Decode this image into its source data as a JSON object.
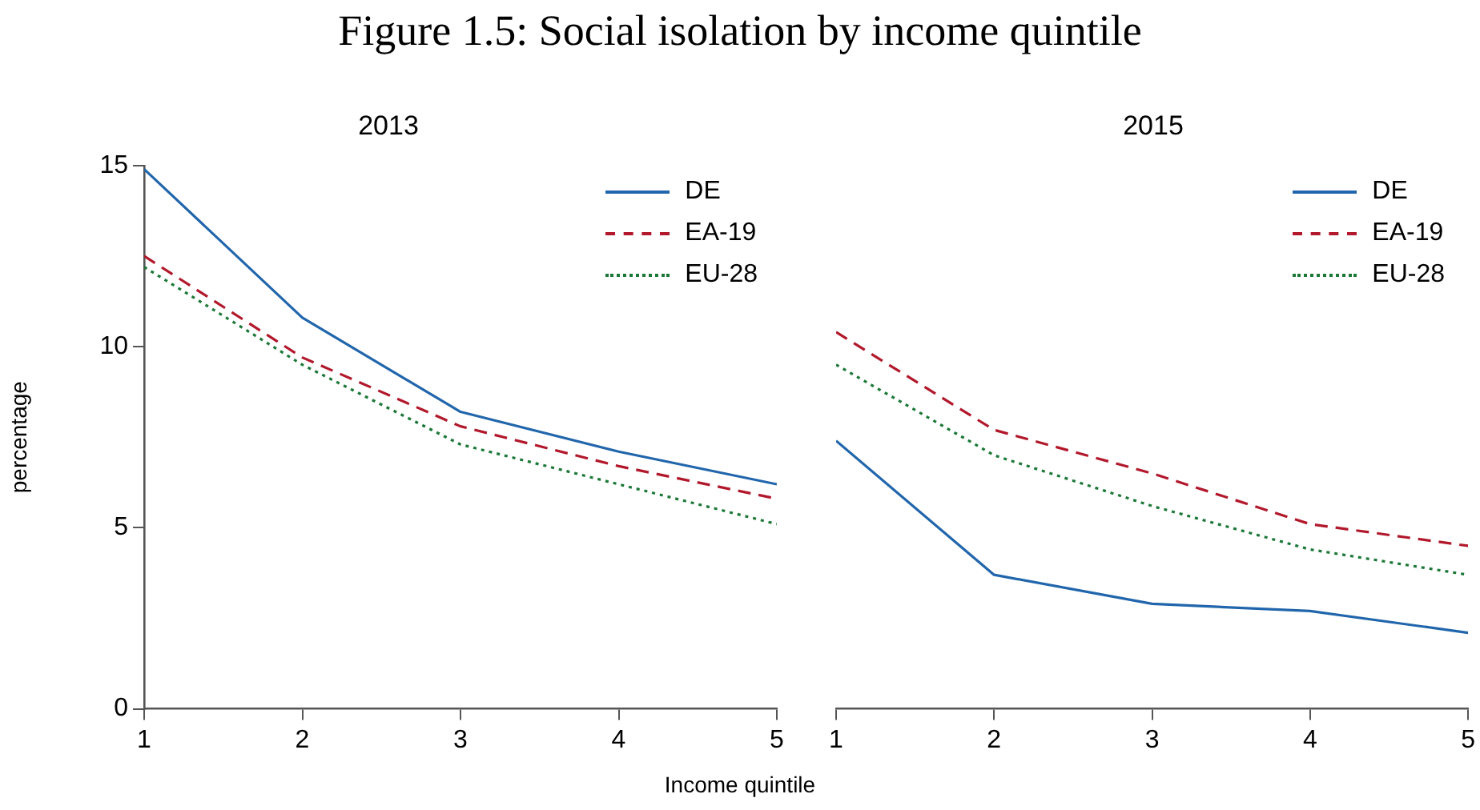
{
  "chart_data": [
    {
      "type": "line",
      "title": "2013",
      "annotations": [
        "Figure 1.5: Social isolation by income quintile"
      ],
      "xlabel": "Income quintile",
      "ylabel": "percentage",
      "x": [
        1,
        2,
        3,
        4,
        5
      ],
      "xlim": [
        1,
        5
      ],
      "xticks": [
        1,
        2,
        3,
        4,
        5
      ],
      "ylim": [
        0,
        15
      ],
      "yticks": [
        0,
        5,
        10,
        15
      ],
      "grid": false,
      "legend": "top right",
      "series": [
        {
          "name": "DE",
          "color": "#2166ac",
          "line_style": "solid",
          "values": [
            14.9,
            10.8,
            8.2,
            7.1,
            6.2
          ]
        },
        {
          "name": "EA-19",
          "color": "#b2182b",
          "line_style": "dashed",
          "values": [
            12.5,
            9.7,
            7.8,
            6.7,
            5.8
          ]
        },
        {
          "name": "EU-28",
          "color": "#1b7837",
          "line_style": "dotted",
          "values": [
            12.2,
            9.5,
            7.3,
            6.2,
            5.1
          ]
        }
      ]
    },
    {
      "type": "line",
      "title": "2015",
      "x": [
        1,
        2,
        3,
        4,
        5
      ],
      "xlim": [
        1,
        5
      ],
      "xticks": [
        1,
        2,
        3,
        4,
        5
      ],
      "ylim": [
        0,
        15
      ],
      "tick_labels": "x",
      "grid": false,
      "legend": "top right",
      "series": [
        {
          "name": "DE",
          "color": "#2166ac",
          "line_style": "solid",
          "values": [
            7.4,
            3.7,
            2.9,
            2.7,
            2.1
          ]
        },
        {
          "name": "EA-19",
          "color": "#b2182b",
          "line_style": "dashed",
          "values": [
            10.4,
            7.7,
            6.5,
            5.1,
            4.5
          ]
        },
        {
          "name": "EU-28",
          "color": "#1b7837",
          "line_style": "dotted",
          "values": [
            9.5,
            7.0,
            5.6,
            4.4,
            3.7
          ]
        }
      ]
    }
  ]
}
